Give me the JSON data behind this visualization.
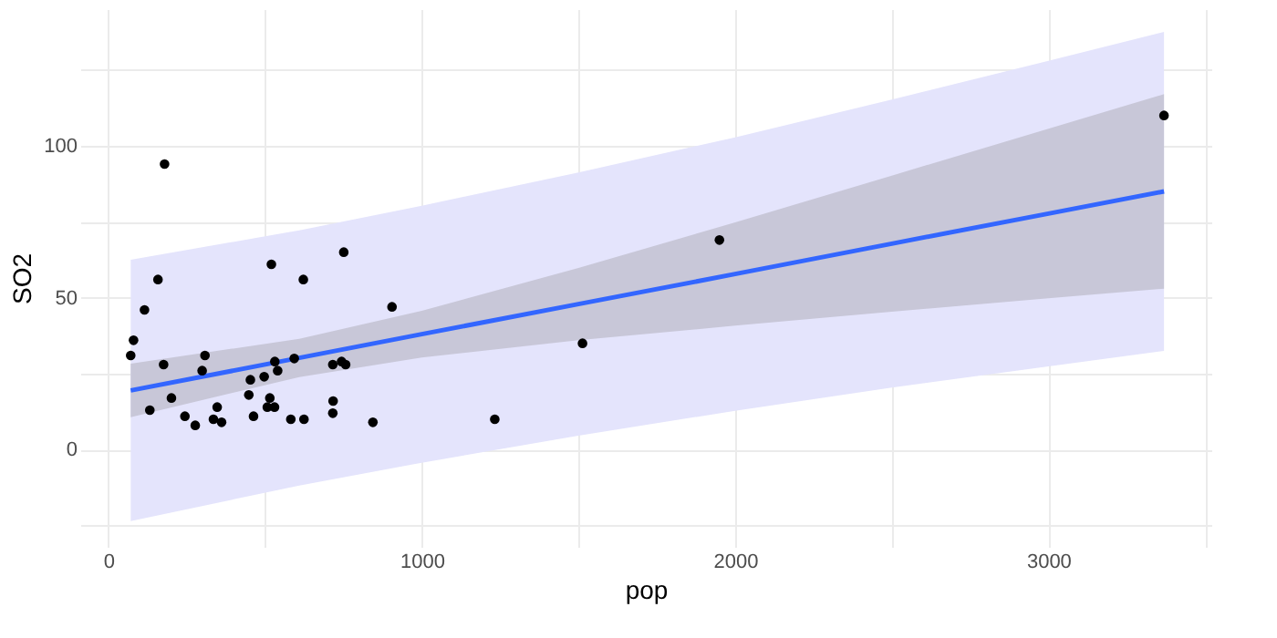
{
  "chart_data": {
    "type": "scatter",
    "xlabel": "pop",
    "ylabel": "SO2",
    "xlim": [
      -90,
      3520
    ],
    "ylim": [
      -32,
      145
    ],
    "xticks": [
      0,
      {
        "value": 500,
        "label": null
      },
      1000,
      {
        "value": 1500,
        "label": null
      },
      2000,
      {
        "value": 2500,
        "label": null
      },
      3000,
      {
        "value": 3500,
        "label": null
      }
    ],
    "yticks": [
      {
        "value": -25,
        "label": null
      },
      0,
      {
        "value": 25,
        "label": null
      },
      50,
      {
        "value": 75,
        "label": null
      },
      100,
      {
        "value": 125,
        "label": null
      }
    ],
    "grid": true,
    "series": [
      {
        "type": "area",
        "color": "#e4e4fc",
        "x": [
          71,
          609,
          1000,
          1500,
          2000,
          2500,
          3000,
          3369
        ],
        "values": [
          null,
          null,
          null,
          null,
          null,
          null,
          null,
          null
        ],
        "lower": [
          -23.5,
          -11.8,
          -4.3,
          4.6,
          12.8,
          20.4,
          27.4,
          32.5
        ],
        "upper": [
          62.5,
          72.2,
          80.3,
          91.2,
          102.8,
          115.2,
          128,
          137.5
        ]
      },
      {
        "type": "area",
        "color": "#c8c7d8",
        "x": [
          71,
          609,
          1000,
          1500,
          2000,
          2500,
          3000,
          3369
        ],
        "values": [
          null,
          null,
          null,
          null,
          null,
          null,
          null,
          null
        ],
        "lower": [
          10.7,
          23.9,
          30.3,
          36.0,
          40.8,
          45.4,
          49.8,
          53.0
        ],
        "upper": [
          28.3,
          36.5,
          45.7,
          59.8,
          74.8,
          90.2,
          105.6,
          117.0
        ]
      },
      {
        "type": "line",
        "color": "#3366ff",
        "x": [
          71,
          609,
          1000,
          1500,
          2000,
          2500,
          3000,
          3369
        ],
        "values": [
          19.5,
          30.2,
          38.0,
          47.9,
          57.8,
          67.8,
          77.7,
          85.0
        ]
      },
      {
        "color": "#000000",
        "marker": "circle",
        "x": [
          115,
          244,
          497,
          905,
          463,
          71,
          3369,
          453,
          751,
          540,
          844,
          515,
          201,
          1513,
          158,
          1233,
          716,
          530,
          507,
          132,
          593,
          624,
          335,
          717,
          744,
          448,
          361,
          308,
          347,
          1950,
          582,
          520,
          179,
          299,
          176,
          716,
          531,
          622,
          757,
          277,
          80
        ],
        "values": [
          46,
          11,
          24,
          47,
          11,
          31,
          110,
          23,
          65,
          26,
          9,
          17,
          17,
          35,
          56,
          10,
          28,
          14,
          14,
          13,
          30,
          10,
          10,
          16,
          29,
          18,
          9,
          31,
          14,
          69,
          10,
          61,
          94,
          26,
          28,
          12,
          29,
          56,
          28,
          8,
          36
        ]
      }
    ]
  }
}
